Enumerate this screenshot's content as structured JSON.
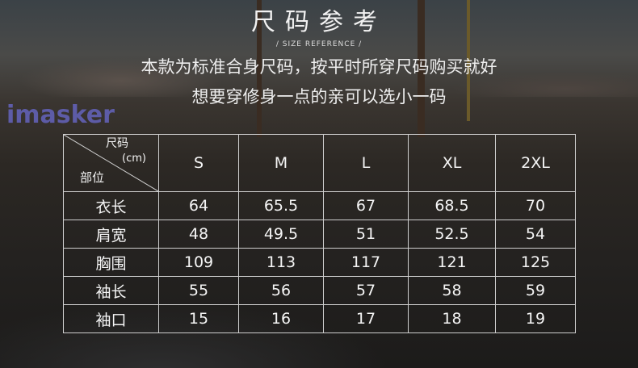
{
  "header": {
    "title": "尺码参考",
    "subtitle": "/ SIZE REFERENCE /",
    "note_line1": "本款为标准合身尺码，按平时所穿尺码购买就好",
    "note_line2": "想要穿修身一点的亲可以选小一码"
  },
  "table": {
    "corner": {
      "size_label": "尺码",
      "unit": "(cm)",
      "part_label": "部位"
    },
    "sizes": [
      "S",
      "M",
      "L",
      "XL",
      "2XL"
    ],
    "rows": [
      {
        "label": "衣长",
        "values": [
          "64",
          "65.5",
          "67",
          "68.5",
          "70"
        ]
      },
      {
        "label": "肩宽",
        "values": [
          "48",
          "49.5",
          "51",
          "52.5",
          "54"
        ]
      },
      {
        "label": "胸围",
        "values": [
          "109",
          "113",
          "117",
          "121",
          "125"
        ]
      },
      {
        "label": "袖长",
        "values": [
          "55",
          "56",
          "57",
          "58",
          "59"
        ]
      },
      {
        "label": "袖口",
        "values": [
          "15",
          "16",
          "17",
          "18",
          "19"
        ]
      }
    ]
  },
  "watermark": "imasker"
}
